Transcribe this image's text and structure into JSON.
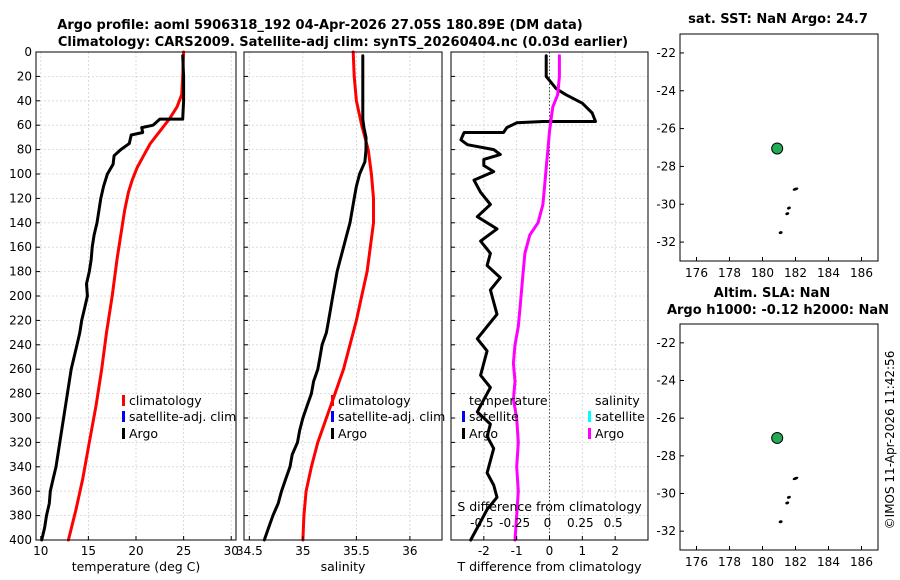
{
  "title_line1": "Argo profile: aoml 5906318_192 04-Apr-2026 27.05S 180.89E (DM data)",
  "title_line2": "Climatology: CARS2009. Satellite-adj clim: synTS_20260404.nc (0.03d earlier)",
  "side_title_top": "sat. SST: NaN Argo: 24.7",
  "side_title_bottom_1": "Altim. SLA: NaN",
  "side_title_bottom_2": "Argo h1000: -0.12 h2000: NaN",
  "credit": "©IMOS 11-Apr-2026 11:42:56",
  "colors": {
    "climatology": "#ff0000",
    "satellite": "#0000ff",
    "argo": "#000000",
    "satellite_salinity": "#00ffff",
    "argo_salinity": "#ff00ff",
    "marker": "#22aa55"
  },
  "legend": {
    "climatology": "climatology",
    "satellite_adj": "satellite-adj. clim",
    "argo": "Argo",
    "temperature": "temperature",
    "salinity": "salinity",
    "satellite": "satellite"
  },
  "chart_data": [
    {
      "id": "temperature",
      "type": "line",
      "xlabel": "temperature (deg C)",
      "xlim": [
        9.5,
        30.5
      ],
      "xticks": [
        10,
        15,
        20,
        25,
        30
      ],
      "xtick_labels": [
        "10",
        "15",
        "20",
        "25",
        "30"
      ],
      "ylim": [
        400,
        0
      ],
      "yticks": [
        0,
        20,
        40,
        60,
        80,
        100,
        120,
        140,
        160,
        180,
        200,
        220,
        240,
        260,
        280,
        300,
        320,
        340,
        360,
        380,
        400
      ],
      "ytick_labels": [
        "0",
        "20",
        "40",
        "60",
        "80",
        "100",
        "120",
        "140",
        "160",
        "180",
        "200",
        "220",
        "240",
        "260",
        "280",
        "300",
        "320",
        "340",
        "360",
        "380",
        "400"
      ],
      "series": [
        {
          "name": "climatology",
          "color": "#ff0000",
          "points": [
            [
              25.0,
              0
            ],
            [
              24.9,
              20
            ],
            [
              24.8,
              35
            ],
            [
              24.3,
              45
            ],
            [
              23.5,
              55
            ],
            [
              22.5,
              65
            ],
            [
              21.5,
              75
            ],
            [
              20.8,
              85
            ],
            [
              20.1,
              95
            ],
            [
              19.6,
              105
            ],
            [
              19.2,
              115
            ],
            [
              18.8,
              130
            ],
            [
              18.4,
              150
            ],
            [
              18.0,
              170
            ],
            [
              17.5,
              200
            ],
            [
              16.9,
              230
            ],
            [
              16.4,
              260
            ],
            [
              15.8,
              290
            ],
            [
              15.1,
              320
            ],
            [
              14.4,
              350
            ],
            [
              13.7,
              375
            ],
            [
              12.9,
              400
            ]
          ]
        },
        {
          "name": "Argo",
          "color": "#000000",
          "points": [
            [
              24.9,
              3
            ],
            [
              25.0,
              20
            ],
            [
              25.0,
              40
            ],
            [
              24.9,
              55
            ],
            [
              22.5,
              55
            ],
            [
              21.8,
              60
            ],
            [
              20.6,
              62
            ],
            [
              20.7,
              66
            ],
            [
              19.5,
              68
            ],
            [
              19.3,
              75
            ],
            [
              18.4,
              80
            ],
            [
              17.7,
              85
            ],
            [
              17.6,
              92
            ],
            [
              17.0,
              100
            ],
            [
              16.6,
              110
            ],
            [
              16.3,
              120
            ],
            [
              16.1,
              130
            ],
            [
              15.9,
              140
            ],
            [
              15.6,
              150
            ],
            [
              15.4,
              160
            ],
            [
              15.3,
              170
            ],
            [
              15.1,
              180
            ],
            [
              14.8,
              190
            ],
            [
              14.9,
              200
            ],
            [
              14.6,
              210
            ],
            [
              14.3,
              220
            ],
            [
              14.1,
              230
            ],
            [
              13.8,
              240
            ],
            [
              13.5,
              250
            ],
            [
              13.2,
              260
            ],
            [
              13.0,
              270
            ],
            [
              12.8,
              280
            ],
            [
              12.6,
              290
            ],
            [
              12.4,
              300
            ],
            [
              12.2,
              310
            ],
            [
              12.0,
              320
            ],
            [
              11.8,
              330
            ],
            [
              11.6,
              340
            ],
            [
              11.3,
              350
            ],
            [
              11.0,
              360
            ],
            [
              10.9,
              370
            ],
            [
              10.6,
              380
            ],
            [
              10.4,
              390
            ],
            [
              10.1,
              400
            ]
          ]
        }
      ]
    },
    {
      "id": "salinity",
      "type": "line",
      "xlabel": "salinity",
      "xlim": [
        34.45,
        36.3
      ],
      "xticks": [
        34.5,
        35,
        35.5,
        36
      ],
      "xtick_labels": [
        "34.5",
        "35",
        "35.5",
        "36"
      ],
      "ylim": [
        400,
        0
      ],
      "yticks": [
        0,
        20,
        40,
        60,
        80,
        100,
        120,
        140,
        160,
        180,
        200,
        220,
        240,
        260,
        280,
        300,
        320,
        340,
        360,
        380,
        400
      ],
      "series": [
        {
          "name": "climatology",
          "color": "#ff0000",
          "points": [
            [
              35.47,
              0
            ],
            [
              35.48,
              20
            ],
            [
              35.5,
              40
            ],
            [
              35.55,
              60
            ],
            [
              35.61,
              80
            ],
            [
              35.64,
              100
            ],
            [
              35.66,
              120
            ],
            [
              35.66,
              140
            ],
            [
              35.63,
              160
            ],
            [
              35.6,
              180
            ],
            [
              35.55,
              200
            ],
            [
              35.5,
              220
            ],
            [
              35.44,
              240
            ],
            [
              35.38,
              260
            ],
            [
              35.3,
              280
            ],
            [
              35.22,
              300
            ],
            [
              35.14,
              320
            ],
            [
              35.08,
              340
            ],
            [
              35.03,
              360
            ],
            [
              35.01,
              380
            ],
            [
              35.0,
              400
            ]
          ]
        },
        {
          "name": "Argo",
          "color": "#000000",
          "points": [
            [
              35.56,
              3
            ],
            [
              35.56,
              20
            ],
            [
              35.56,
              40
            ],
            [
              35.56,
              55
            ],
            [
              35.57,
              62
            ],
            [
              35.59,
              70
            ],
            [
              35.59,
              80
            ],
            [
              35.58,
              90
            ],
            [
              35.53,
              100
            ],
            [
              35.5,
              110
            ],
            [
              35.48,
              120
            ],
            [
              35.46,
              130
            ],
            [
              35.44,
              140
            ],
            [
              35.41,
              150
            ],
            [
              35.38,
              160
            ],
            [
              35.35,
              170
            ],
            [
              35.32,
              180
            ],
            [
              35.3,
              190
            ],
            [
              35.28,
              200
            ],
            [
              35.26,
              210
            ],
            [
              35.24,
              220
            ],
            [
              35.22,
              230
            ],
            [
              35.18,
              240
            ],
            [
              35.16,
              250
            ],
            [
              35.14,
              260
            ],
            [
              35.1,
              270
            ],
            [
              35.08,
              280
            ],
            [
              35.04,
              290
            ],
            [
              35.0,
              300
            ],
            [
              34.97,
              310
            ],
            [
              34.95,
              320
            ],
            [
              34.9,
              330
            ],
            [
              34.88,
              340
            ],
            [
              34.84,
              350
            ],
            [
              34.8,
              360
            ],
            [
              34.77,
              370
            ],
            [
              34.72,
              380
            ],
            [
              34.68,
              390
            ],
            [
              34.64,
              400
            ]
          ]
        }
      ]
    },
    {
      "id": "difference",
      "type": "line",
      "xlabel": "T difference from climatology",
      "top_label": "S difference from climatology",
      "xlim": [
        -3.0,
        3.0
      ],
      "xticks": [
        -2,
        -1,
        0,
        1,
        2
      ],
      "xtick_labels": [
        "-2",
        "-1",
        "0",
        "1",
        "2"
      ],
      "s_ticks": [
        "-0.5",
        "-0.25",
        "0",
        "0.25",
        "0.5"
      ],
      "zero_line": 0,
      "ylim": [
        400,
        0
      ],
      "yticks": [
        0,
        20,
        40,
        60,
        80,
        100,
        120,
        140,
        160,
        180,
        200,
        220,
        240,
        260,
        280,
        300,
        320,
        340,
        360,
        380,
        400
      ],
      "series": [
        {
          "name": "T difference (Argo)",
          "color": "#000000",
          "points": [
            [
              -0.1,
              3
            ],
            [
              -0.1,
              15
            ],
            [
              -0.1,
              20
            ],
            [
              0.2,
              30
            ],
            [
              0.5,
              35
            ],
            [
              1.0,
              42
            ],
            [
              1.3,
              50
            ],
            [
              1.4,
              57
            ],
            [
              -0.2,
              57
            ],
            [
              -1.0,
              58
            ],
            [
              -1.3,
              62
            ],
            [
              -1.4,
              66
            ],
            [
              -2.6,
              66
            ],
            [
              -2.7,
              72
            ],
            [
              -2.5,
              76
            ],
            [
              -1.7,
              80
            ],
            [
              -1.5,
              84
            ],
            [
              -2.0,
              88
            ],
            [
              -2.0,
              93
            ],
            [
              -1.7,
              98
            ],
            [
              -2.3,
              105
            ],
            [
              -2.1,
              115
            ],
            [
              -1.8,
              125
            ],
            [
              -2.2,
              135
            ],
            [
              -1.6,
              145
            ],
            [
              -2.1,
              155
            ],
            [
              -1.8,
              165
            ],
            [
              -1.9,
              175
            ],
            [
              -1.5,
              185
            ],
            [
              -1.8,
              195
            ],
            [
              -1.7,
              205
            ],
            [
              -1.6,
              215
            ],
            [
              -1.9,
              225
            ],
            [
              -2.2,
              235
            ],
            [
              -1.9,
              245
            ],
            [
              -2.0,
              255
            ],
            [
              -2.1,
              265
            ],
            [
              -1.8,
              275
            ],
            [
              -2.0,
              285
            ],
            [
              -2.2,
              295
            ],
            [
              -1.8,
              305
            ],
            [
              -1.9,
              315
            ],
            [
              -1.7,
              325
            ],
            [
              -1.8,
              335
            ],
            [
              -1.9,
              345
            ],
            [
              -1.7,
              355
            ],
            [
              -1.6,
              365
            ],
            [
              -1.9,
              375
            ],
            [
              -2.1,
              385
            ],
            [
              -2.3,
              395
            ],
            [
              -2.4,
              400
            ]
          ]
        },
        {
          "name": "S difference (Argo)",
          "color": "#ff00ff",
          "points": [
            [
              0.3,
              3
            ],
            [
              0.3,
              20
            ],
            [
              0.25,
              35
            ],
            [
              0.1,
              45
            ],
            [
              0.05,
              55
            ],
            [
              0.0,
              65
            ],
            [
              -0.05,
              80
            ],
            [
              -0.1,
              95
            ],
            [
              -0.15,
              110
            ],
            [
              -0.2,
              125
            ],
            [
              -0.35,
              140
            ],
            [
              -0.6,
              150
            ],
            [
              -0.75,
              165
            ],
            [
              -0.8,
              180
            ],
            [
              -0.85,
              195
            ],
            [
              -0.9,
              210
            ],
            [
              -0.95,
              225
            ],
            [
              -1.05,
              240
            ],
            [
              -1.1,
              255
            ],
            [
              -1.05,
              270
            ],
            [
              -1.1,
              285
            ],
            [
              -1.0,
              300
            ],
            [
              -0.95,
              320
            ],
            [
              -1.0,
              340
            ],
            [
              -0.95,
              360
            ],
            [
              -1.0,
              380
            ],
            [
              -1.05,
              400
            ]
          ]
        }
      ]
    },
    {
      "id": "map_sst",
      "type": "scatter",
      "xlim": [
        175,
        187
      ],
      "ylim": [
        -33,
        -21
      ],
      "xticks": [
        176,
        178,
        180,
        182,
        184,
        186
      ],
      "xtick_labels": [
        "176",
        "178",
        "180",
        "182",
        "184",
        "186"
      ],
      "yticks": [
        -22,
        -24,
        -26,
        -28,
        -30,
        -32
      ],
      "ytick_labels": [
        "-22",
        "-24",
        "-26",
        "-28",
        "-30",
        "-32"
      ],
      "float_position": [
        180.89,
        -27.05
      ],
      "land_points": [
        [
          182.0,
          -29.2
        ],
        [
          181.6,
          -30.2
        ],
        [
          181.5,
          -30.5
        ],
        [
          181.1,
          -31.5
        ]
      ]
    },
    {
      "id": "map_sla",
      "type": "scatter",
      "xlim": [
        175,
        187
      ],
      "ylim": [
        -33,
        -21
      ],
      "xticks": [
        176,
        178,
        180,
        182,
        184,
        186
      ],
      "xtick_labels": [
        "176",
        "178",
        "180",
        "182",
        "184",
        "186"
      ],
      "yticks": [
        -22,
        -24,
        -26,
        -28,
        -30,
        -32
      ],
      "ytick_labels": [
        "-22",
        "-24",
        "-26",
        "-28",
        "-30",
        "-32"
      ],
      "float_position": [
        180.89,
        -27.05
      ],
      "land_points": [
        [
          182.0,
          -29.2
        ],
        [
          181.6,
          -30.2
        ],
        [
          181.5,
          -30.5
        ],
        [
          181.1,
          -31.5
        ]
      ]
    }
  ]
}
